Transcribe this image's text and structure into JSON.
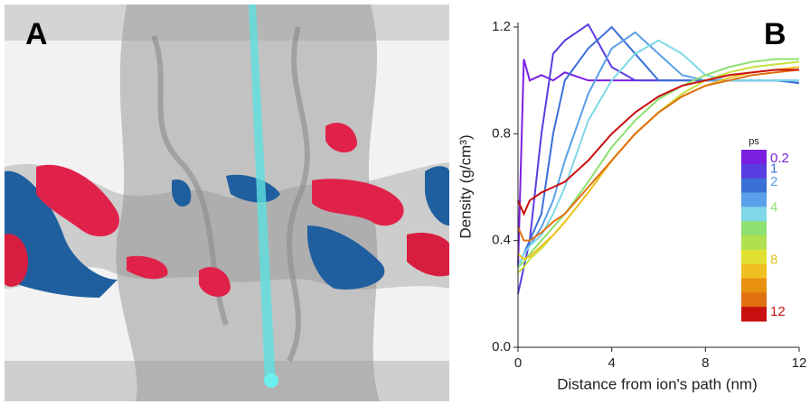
{
  "panel_a": {
    "label": "A"
  },
  "chart_data": {
    "type": "line",
    "panel_label": "B",
    "xlabel": "Distance from ion's path  (nm)",
    "ylabel": "Density (g/cm³)",
    "x": [
      0,
      0.25,
      0.5,
      1,
      1.5,
      2,
      3,
      4,
      5,
      6,
      7,
      8,
      9,
      10,
      11,
      12
    ],
    "xlim": [
      0,
      12
    ],
    "xticks": [
      0,
      4,
      8,
      12
    ],
    "ylim": [
      0,
      1.2
    ],
    "yticks": [
      {
        "value": 0,
        "label": "0.0"
      },
      0.4,
      0.8,
      1.2
    ],
    "series": [
      {
        "color": "#7a1fe0",
        "values": [
          0.3,
          1.08,
          1.0,
          1.02,
          1.0,
          1.03,
          1.0,
          1.0,
          1.0,
          1.0,
          1.0,
          1.0,
          1.0,
          1.0,
          1.0,
          1.0
        ]
      },
      {
        "color": "#5a3de0",
        "values": [
          0.2,
          0.3,
          0.4,
          0.8,
          1.1,
          1.15,
          1.21,
          1.05,
          1.0,
          1.0,
          1.0,
          1.0,
          1.0,
          1.0,
          1.0,
          1.0
        ]
      },
      {
        "color": "#3a6fd8",
        "values": [
          0.3,
          0.35,
          0.4,
          0.5,
          0.8,
          1.0,
          1.12,
          1.2,
          1.1,
          1.0,
          1.0,
          1.0,
          1.0,
          1.0,
          1.0,
          0.99
        ]
      },
      {
        "color": "#5aa0e8",
        "values": [
          0.3,
          0.35,
          0.38,
          0.45,
          0.55,
          0.7,
          0.95,
          1.12,
          1.18,
          1.1,
          1.02,
          1.0,
          1.0,
          1.0,
          1.0,
          1.0
        ]
      },
      {
        "color": "#7fd8e8",
        "values": [
          0.3,
          0.35,
          0.38,
          0.42,
          0.5,
          0.6,
          0.85,
          1.0,
          1.1,
          1.15,
          1.1,
          1.02,
          1.0,
          1.0,
          1.0,
          1.0
        ]
      },
      {
        "color": "#8ee070",
        "values": [
          0.3,
          0.32,
          0.35,
          0.4,
          0.45,
          0.5,
          0.62,
          0.75,
          0.85,
          0.93,
          0.98,
          1.02,
          1.05,
          1.07,
          1.08,
          1.08
        ]
      },
      {
        "color": "#c8e040",
        "values": [
          0.28,
          0.3,
          0.33,
          0.37,
          0.42,
          0.47,
          0.58,
          0.7,
          0.8,
          0.88,
          0.95,
          1.0,
          1.03,
          1.05,
          1.06,
          1.07
        ]
      },
      {
        "color": "#f0c020",
        "values": [
          0.35,
          0.33,
          0.34,
          0.38,
          0.42,
          0.47,
          0.58,
          0.7,
          0.8,
          0.88,
          0.94,
          0.98,
          1.01,
          1.03,
          1.04,
          1.05
        ]
      },
      {
        "color": "#e07010",
        "values": [
          0.45,
          0.4,
          0.4,
          0.43,
          0.47,
          0.5,
          0.6,
          0.7,
          0.8,
          0.88,
          0.94,
          0.98,
          1.0,
          1.02,
          1.03,
          1.04
        ]
      },
      {
        "color": "#c81010",
        "values": [
          0.55,
          0.5,
          0.55,
          0.58,
          0.6,
          0.62,
          0.7,
          0.8,
          0.88,
          0.94,
          0.98,
          1.0,
          1.02,
          1.03,
          1.04,
          1.04
        ]
      }
    ],
    "colorbar": {
      "title": "ps",
      "lim": [
        0.2,
        12
      ],
      "ticks": [
        0.2,
        1,
        2,
        4,
        8,
        12
      ],
      "colors": [
        "#7a1fe0",
        "#5a3de0",
        "#3a6fd8",
        "#5aa0e8",
        "#7fd8e8",
        "#8ee070",
        "#b0e050",
        "#e0e030",
        "#f0c020",
        "#e89010",
        "#e07010",
        "#c81010"
      ],
      "tick_colors": [
        "#7a1fe0",
        "#3a6fd8",
        "#5aa0e8",
        "#8ee070",
        "#e0c020",
        "#c81010"
      ]
    }
  }
}
